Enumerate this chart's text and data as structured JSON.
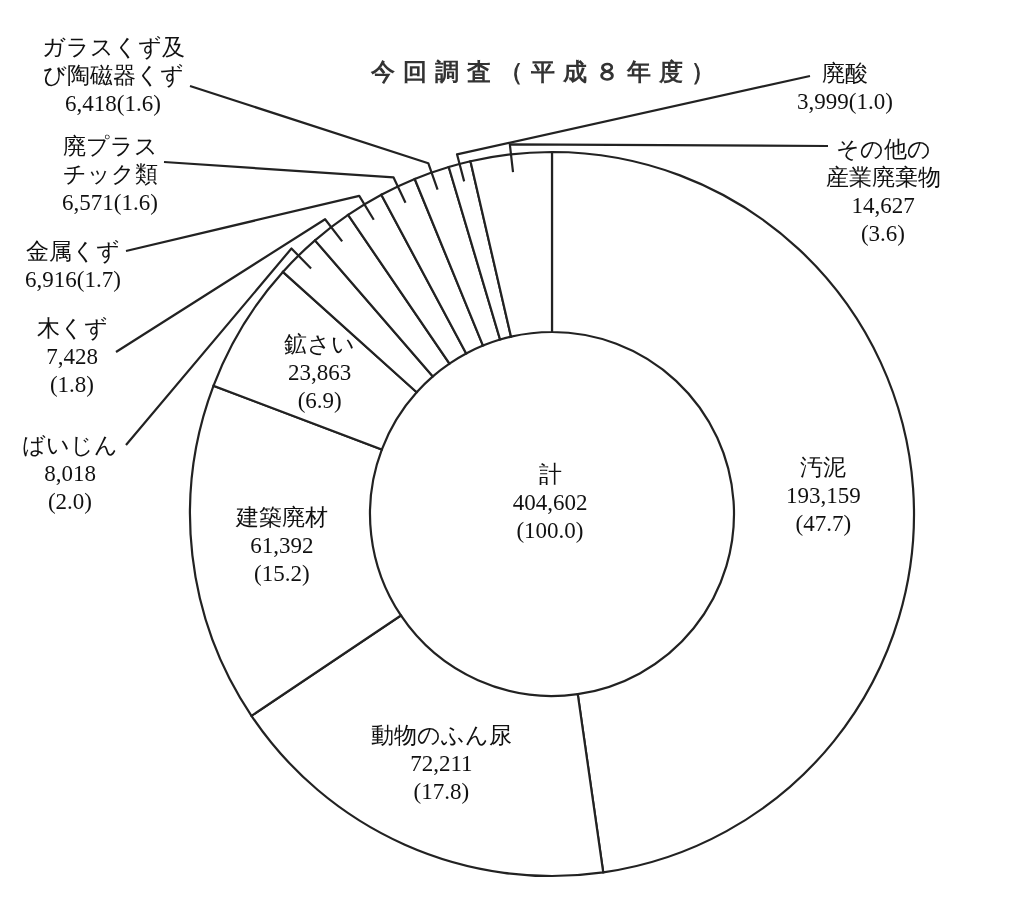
{
  "chart_data": {
    "type": "donut",
    "title": "今回調査（平成８年度）",
    "categories": [
      "汚泥",
      "動物のふん尿",
      "建築廃材",
      "鉱さい",
      "ばいじん",
      "木くず",
      "金属くず",
      "廃プラスチック類",
      "ガラスくず及び陶磁器くず",
      "廃酸",
      "その他の産業廃棄物"
    ],
    "values": [
      193159,
      72211,
      61392,
      23863,
      8018,
      7428,
      6916,
      6571,
      6418,
      3999,
      14627
    ],
    "colors": [
      "#ffffff",
      "#ffffff",
      "#ffffff",
      "#ffffff",
      "#ffffff",
      "#ffffff",
      "#ffffff",
      "#ffffff",
      "#ffffff",
      "#ffffff",
      "#ffffff"
    ],
    "value_labels": [
      "193,159\n(47.7)",
      "72,211\n(17.8)",
      "61,392\n(15.2)",
      "23,863\n(6.9)",
      "8,018\n(2.0)",
      "7,428\n(1.8)",
      "6,916(1.7)",
      "6,571(1.6)",
      "6,418(1.6)",
      "3,999(1.0)",
      "14,627\n(3.6)"
    ],
    "annotations": [
      "計\n404,602\n(100.0)"
    ]
  }
}
